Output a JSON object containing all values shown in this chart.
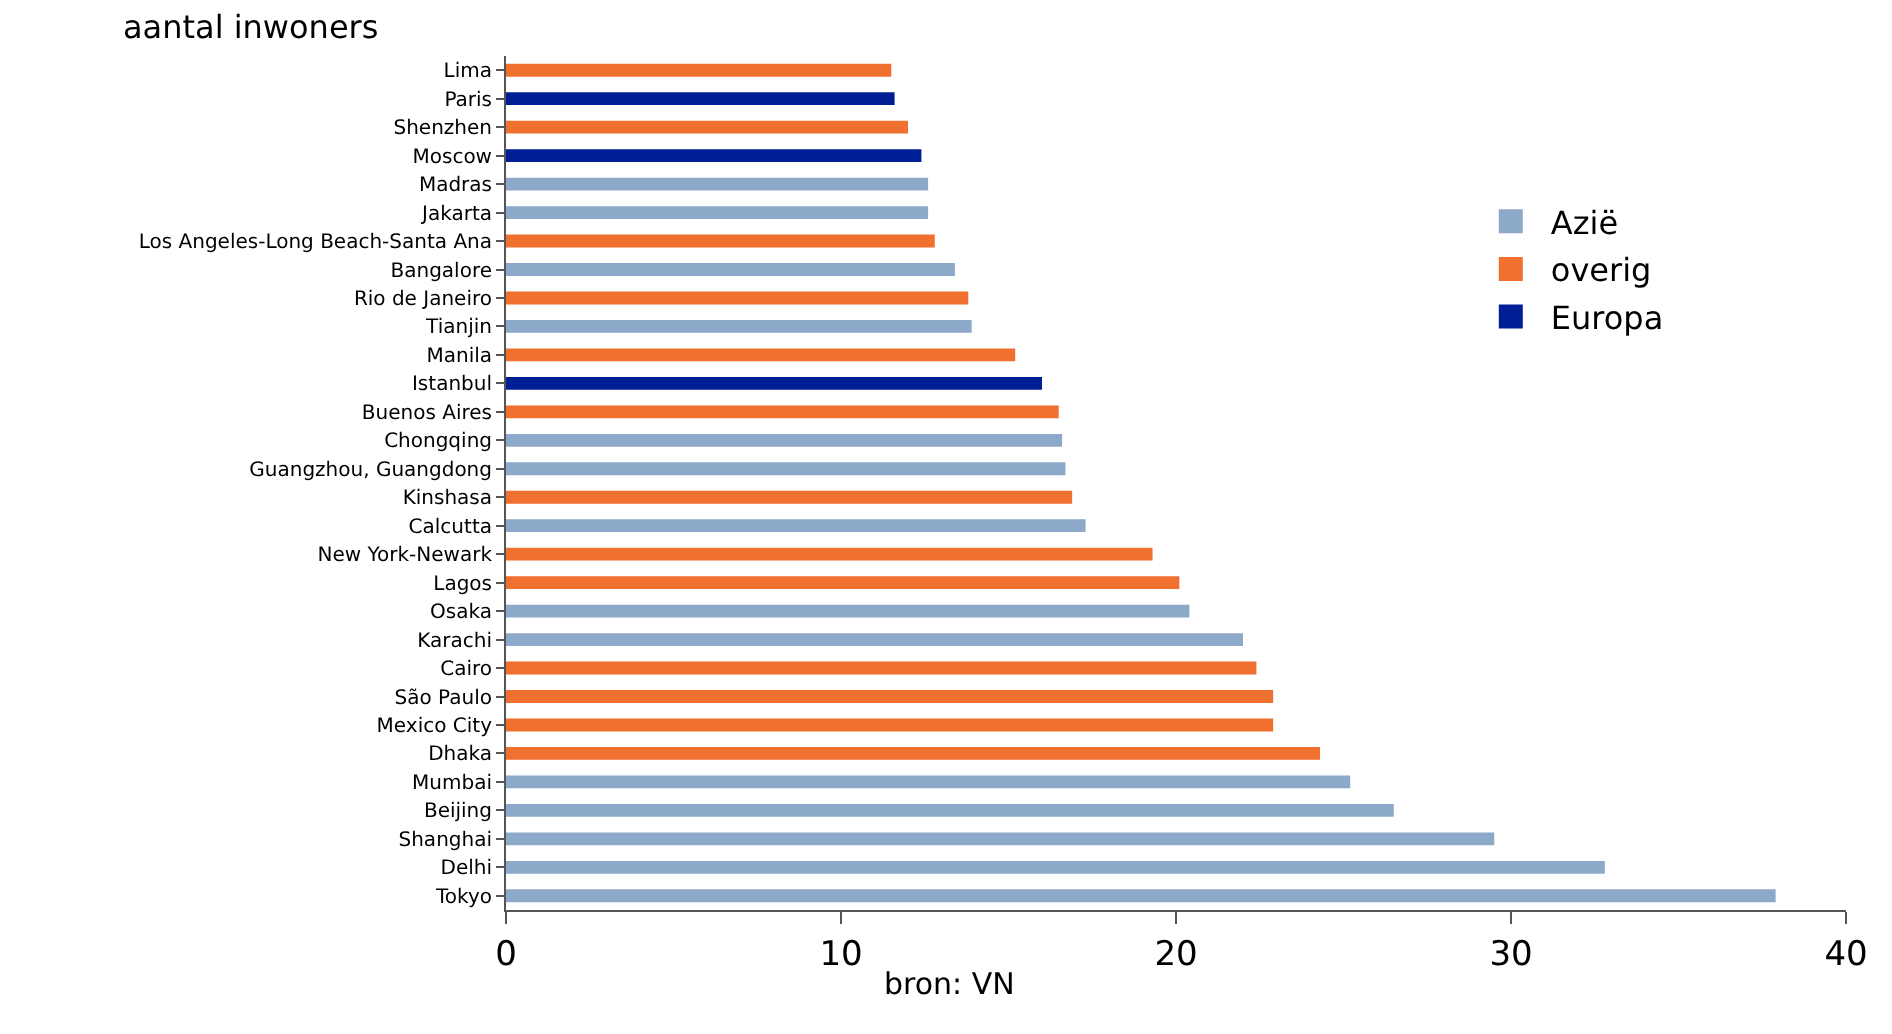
{
  "chart_data": {
    "type": "bar",
    "orientation": "horizontal",
    "title": "aantal inwoners",
    "categories": [
      "Lima",
      "Paris",
      "Shenzhen",
      "Moscow",
      "Madras",
      "Jakarta",
      "Los Angeles-Long Beach-Santa Ana",
      "Bangalore",
      "Rio de Janeiro",
      "Tianjin",
      "Manila",
      "Istanbul",
      "Buenos Aires",
      "Chongqing",
      "Guangzhou, Guangdong",
      "Kinshasa",
      "Calcutta",
      "New York-Newark",
      "Lagos",
      "Osaka",
      "Karachi",
      "Cairo",
      "São Paulo",
      "Mexico City",
      "Dhaka",
      "Mumbai",
      "Beijing",
      "Shanghai",
      "Delhi",
      "Tokyo"
    ],
    "series": [
      {
        "name": "Azië",
        "color": "#8ca9c9",
        "values": [
          null,
          null,
          null,
          null,
          12.6,
          12.6,
          null,
          13.4,
          null,
          13.9,
          null,
          null,
          null,
          16.6,
          16.7,
          null,
          17.3,
          null,
          null,
          20.4,
          22.0,
          null,
          null,
          null,
          null,
          25.2,
          26.5,
          29.5,
          32.8,
          37.9
        ]
      },
      {
        "name": "overig",
        "color": "#f07030",
        "values": [
          11.5,
          null,
          12.0,
          null,
          null,
          null,
          12.8,
          null,
          13.8,
          null,
          15.2,
          null,
          16.5,
          null,
          null,
          16.9,
          null,
          19.3,
          20.1,
          null,
          null,
          22.4,
          22.9,
          22.9,
          24.3,
          null,
          null,
          null,
          null,
          null
        ]
      },
      {
        "name": "Europa",
        "color": "#001f96",
        "values": [
          null,
          11.6,
          null,
          12.4,
          null,
          null,
          null,
          null,
          null,
          null,
          null,
          16.0,
          null,
          null,
          null,
          null,
          null,
          null,
          null,
          null,
          null,
          null,
          null,
          null,
          null,
          null,
          null,
          null,
          null,
          null
        ]
      }
    ],
    "xlim": [
      0,
      40
    ],
    "xticks": [
      0,
      10,
      20,
      30,
      40
    ],
    "legend": "right",
    "annotations": [
      "bron: VN"
    ]
  }
}
